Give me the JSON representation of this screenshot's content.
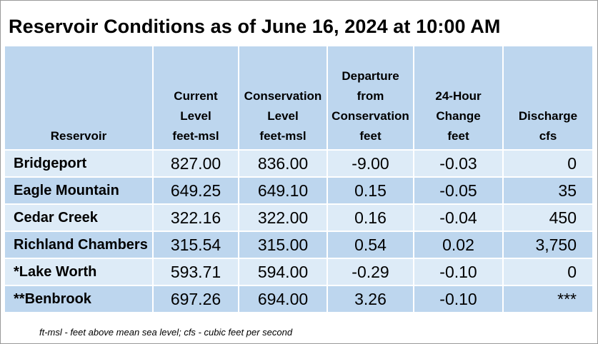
{
  "title": "Reservoir Conditions as of June 16, 2024 at 10:00 AM",
  "columns": [
    {
      "lines": [
        "Reservoir"
      ]
    },
    {
      "lines": [
        "Current",
        "Level",
        "feet-msl"
      ]
    },
    {
      "lines": [
        "Conservation",
        "Level",
        "feet-msl"
      ]
    },
    {
      "lines": [
        "Departure",
        "from",
        "Conservation",
        "feet"
      ]
    },
    {
      "lines": [
        "24-Hour",
        "Change",
        "feet"
      ]
    },
    {
      "lines": [
        "Discharge",
        "cfs"
      ]
    }
  ],
  "rows": [
    {
      "name": "Bridgeport",
      "current": "827.00",
      "conservation": "836.00",
      "departure": "-9.00",
      "change": "-0.03",
      "discharge": "0"
    },
    {
      "name": "Eagle Mountain",
      "current": "649.25",
      "conservation": "649.10",
      "departure": "0.15",
      "change": "-0.05",
      "discharge": "35"
    },
    {
      "name": "Cedar Creek",
      "current": "322.16",
      "conservation": "322.00",
      "departure": "0.16",
      "change": "-0.04",
      "discharge": "450"
    },
    {
      "name": "Richland Chambers",
      "current": "315.54",
      "conservation": "315.00",
      "departure": "0.54",
      "change": "0.02",
      "discharge": "3,750"
    },
    {
      "name": "*Lake Worth",
      "current": "593.71",
      "conservation": "594.00",
      "departure": "-0.29",
      "change": "-0.10",
      "discharge": "0"
    },
    {
      "name": "**Benbrook",
      "current": "697.26",
      "conservation": "694.00",
      "departure": "3.26",
      "change": "-0.10",
      "discharge": "***"
    }
  ],
  "footnote": "ft-msl - feet above mean sea level; cfs - cubic feet per second",
  "colors": {
    "header_bg": "#bdd6ee",
    "row_light": "#ddebf7",
    "row_dark": "#bdd6ee"
  }
}
